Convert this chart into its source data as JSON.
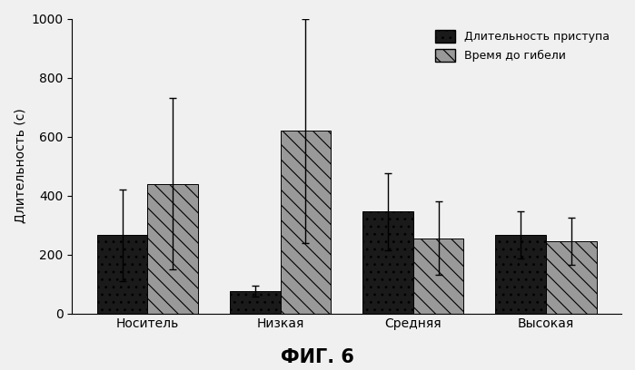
{
  "categories": [
    "Носитель",
    "Низкая",
    "Средняя",
    "Высокая"
  ],
  "dark_values": [
    265,
    75,
    345,
    265
  ],
  "light_values": [
    440,
    620,
    255,
    245
  ],
  "dark_errors": [
    155,
    18,
    130,
    80
  ],
  "light_errors": [
    290,
    380,
    125,
    80
  ],
  "ylabel": "Длительность (с)",
  "ylim": [
    0,
    1000
  ],
  "yticks": [
    0,
    200,
    400,
    600,
    800,
    1000
  ],
  "legend_dark": "Длительность приступа",
  "legend_light": "Время до гибели",
  "title": "ФИГ. 6",
  "dark_color": "#1a1a1a",
  "light_color": "#999999",
  "bar_width": 0.38,
  "background_color": "#f0f0f0"
}
